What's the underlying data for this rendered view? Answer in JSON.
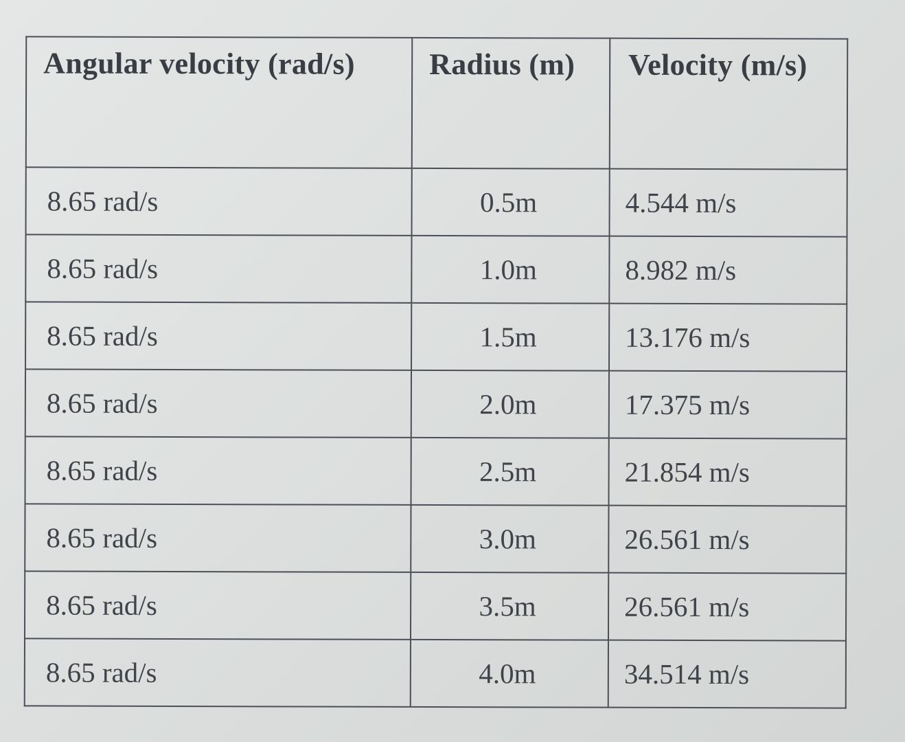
{
  "table": {
    "headers": [
      "Angular velocity (rad/s)",
      "Radius (m)",
      "Velocity (m/s)"
    ],
    "rows": [
      [
        "8.65 rad/s",
        "0.5m",
        "4.544 m/s"
      ],
      [
        "8.65 rad/s",
        "1.0m",
        "8.982 m/s"
      ],
      [
        "8.65 rad/s",
        "1.5m",
        "13.176 m/s"
      ],
      [
        "8.65 rad/s",
        "2.0m",
        "17.375 m/s"
      ],
      [
        "8.65 rad/s",
        "2.5m",
        "21.854 m/s"
      ],
      [
        "8.65 rad/s",
        "3.0m",
        "26.561 m/s"
      ],
      [
        "8.65 rad/s",
        "3.5m",
        "26.561 m/s"
      ],
      [
        "8.65 rad/s",
        "4.0m",
        "34.514 m/s"
      ]
    ]
  }
}
